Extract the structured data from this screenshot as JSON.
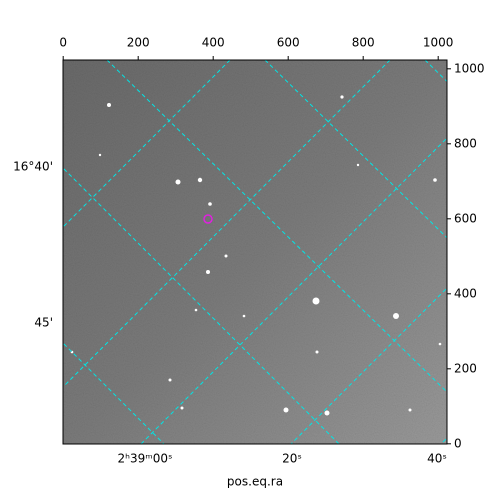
{
  "chart_data": {
    "type": "image",
    "xlabel": "pos.eq.ra",
    "xlim": [
      -0.5,
      1023.5
    ],
    "xticks": [
      0,
      200,
      400,
      600,
      800,
      1000
    ],
    "ylim": [
      -0.5,
      1023.5
    ],
    "yticks": [
      0,
      200,
      400,
      600,
      800,
      1000
    ],
    "ra_ticks": [
      "2ʰ39ᵐ00ˢ",
      "20ˢ",
      "40ˢ"
    ],
    "dec_ticks": [
      "16°40'",
      "45'"
    ],
    "grid_color": "#00e5e5"
  }
}
